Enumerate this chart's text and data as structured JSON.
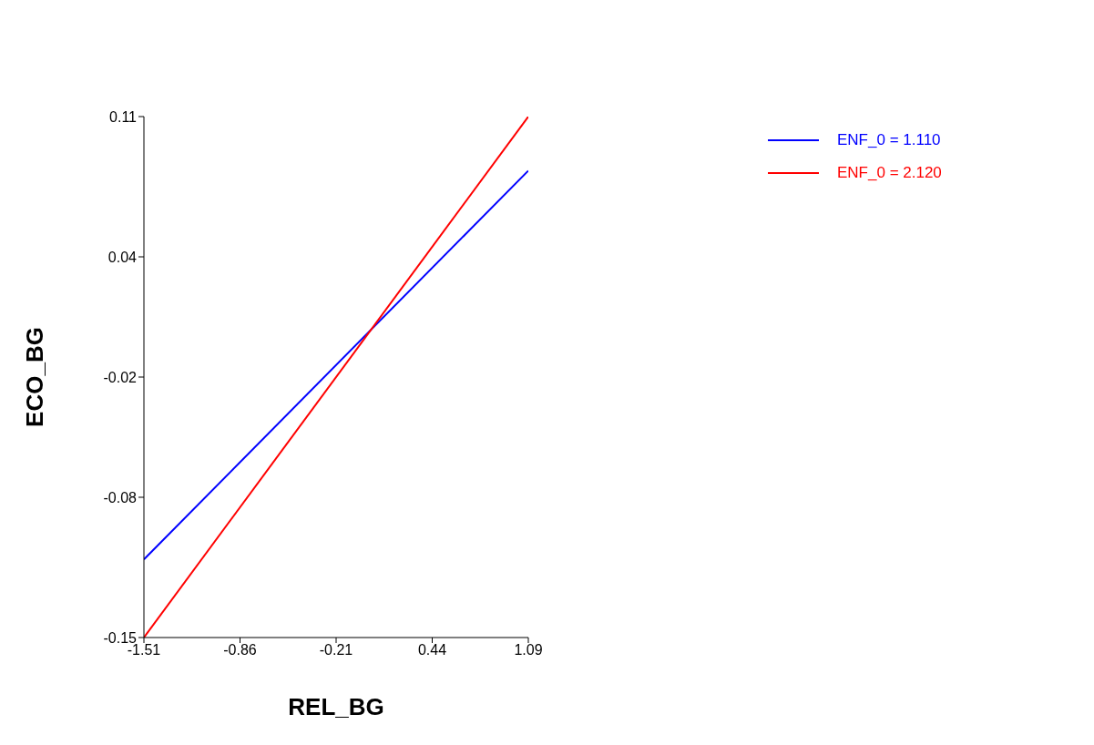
{
  "chart_data": {
    "type": "line",
    "xlabel": "REL_BG",
    "ylabel": "ECO_BG",
    "x": [
      -1.51,
      1.09
    ],
    "series": [
      {
        "name": "ENF_0 = 1.110",
        "color": "#0000ff",
        "values": [
          -0.111,
          0.083
        ]
      },
      {
        "name": "ENF_0 = 2.120",
        "color": "#ff0000",
        "values": [
          -0.15,
          0.11
        ]
      }
    ],
    "xlim": [
      -1.51,
      1.09
    ],
    "xticks": [
      -1.51,
      -0.86,
      -0.21,
      0.44,
      1.09
    ],
    "ylim": [
      -0.15,
      0.11
    ],
    "yticks": [
      -0.15,
      -0.08,
      -0.02,
      0.04,
      0.11
    ],
    "grid": false,
    "legend": "top right",
    "marker": "none",
    "line_style": "solid"
  }
}
